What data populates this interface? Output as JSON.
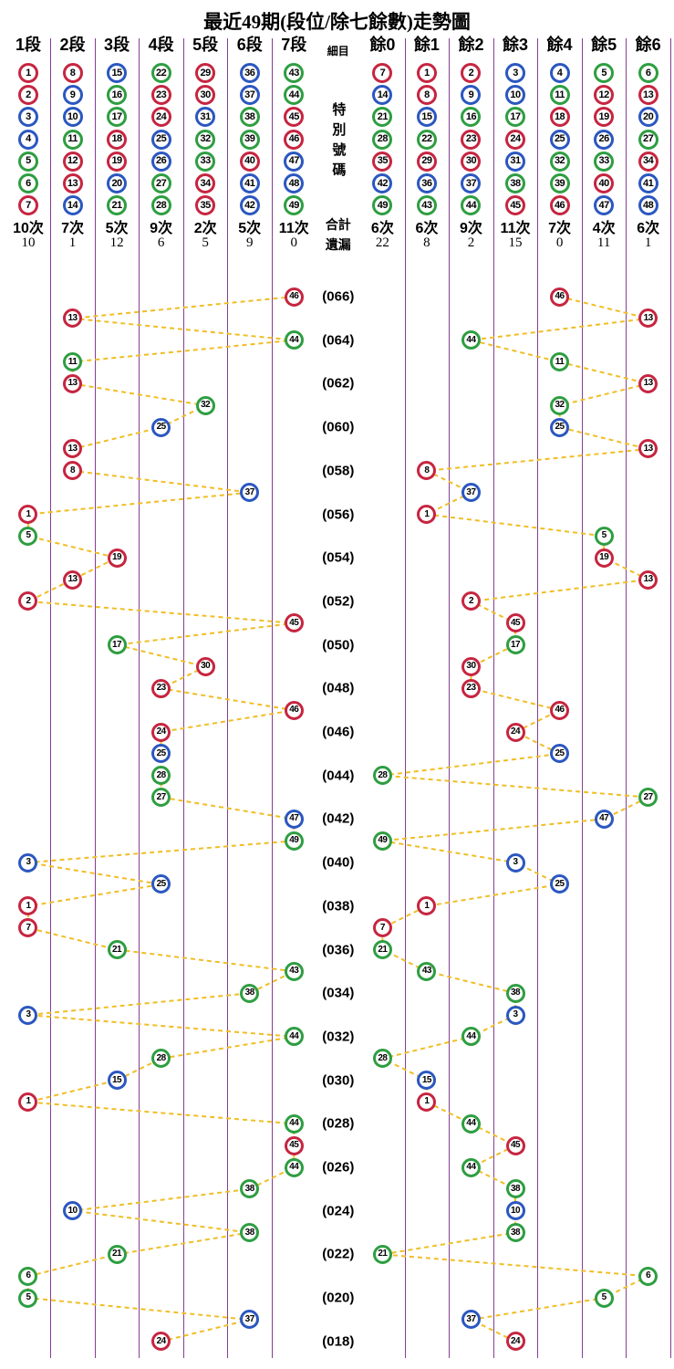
{
  "title": "最近49期(段位/除七餘數)走勢圖",
  "columns": [
    {
      "label": "1段",
      "type": "section",
      "balls": [
        1,
        2,
        3,
        4,
        5,
        6,
        7
      ],
      "count": "10次",
      "miss": "10"
    },
    {
      "label": "2段",
      "type": "section",
      "balls": [
        8,
        9,
        10,
        11,
        12,
        13,
        14
      ],
      "count": "7次",
      "miss": "1"
    },
    {
      "label": "3段",
      "type": "section",
      "balls": [
        15,
        16,
        17,
        18,
        19,
        20,
        21
      ],
      "count": "5次",
      "miss": "12"
    },
    {
      "label": "4段",
      "type": "section",
      "balls": [
        22,
        23,
        24,
        25,
        26,
        27,
        28
      ],
      "count": "9次",
      "miss": "6"
    },
    {
      "label": "5段",
      "type": "section",
      "balls": [
        29,
        30,
        31,
        32,
        33,
        34,
        35
      ],
      "count": "2次",
      "miss": "5"
    },
    {
      "label": "6段",
      "type": "section",
      "balls": [
        36,
        37,
        38,
        39,
        40,
        41,
        42
      ],
      "count": "5次",
      "miss": "9"
    },
    {
      "label": "7段",
      "type": "section",
      "balls": [
        43,
        44,
        45,
        46,
        47,
        48,
        49
      ],
      "count": "11次",
      "miss": "0"
    },
    {
      "label": "細目",
      "type": "detail",
      "special_text": "特別號碼",
      "count_label": "合計",
      "miss_label": "遺漏"
    },
    {
      "label": "餘0",
      "type": "remainder",
      "balls": [
        7,
        14,
        21,
        28,
        35,
        42,
        49
      ],
      "count": "6次",
      "miss": "22"
    },
    {
      "label": "餘1",
      "type": "remainder",
      "balls": [
        1,
        8,
        15,
        22,
        29,
        36,
        43
      ],
      "count": "6次",
      "miss": "8"
    },
    {
      "label": "餘2",
      "type": "remainder",
      "balls": [
        2,
        9,
        16,
        23,
        30,
        37,
        44
      ],
      "count": "9次",
      "miss": "2"
    },
    {
      "label": "餘3",
      "type": "remainder",
      "balls": [
        3,
        10,
        17,
        24,
        31,
        38,
        45
      ],
      "count": "11次",
      "miss": "15"
    },
    {
      "label": "餘4",
      "type": "remainder",
      "balls": [
        4,
        11,
        18,
        25,
        32,
        39,
        46
      ],
      "count": "7次",
      "miss": "0"
    },
    {
      "label": "餘5",
      "type": "remainder",
      "balls": [
        5,
        12,
        19,
        26,
        33,
        40,
        47
      ],
      "count": "4次",
      "miss": "11"
    },
    {
      "label": "餘6",
      "type": "remainder",
      "balls": [
        6,
        13,
        20,
        27,
        34,
        41,
        48
      ],
      "count": "6次",
      "miss": "1"
    }
  ],
  "chart_data": {
    "type": "scatter",
    "title": "最近49期(段位/除七餘數)走勢圖",
    "column_axis": [
      "1段",
      "2段",
      "3段",
      "4段",
      "5段",
      "6段",
      "7段",
      "細目",
      "餘0",
      "餘1",
      "餘2",
      "餘3",
      "餘4",
      "餘5",
      "餘6"
    ],
    "rows": [
      {
        "num": 46,
        "period": "(066)"
      },
      {
        "num": 13,
        "period": ""
      },
      {
        "num": 44,
        "period": "(064)"
      },
      {
        "num": 11,
        "period": ""
      },
      {
        "num": 13,
        "period": "(062)"
      },
      {
        "num": 32,
        "period": ""
      },
      {
        "num": 25,
        "period": "(060)"
      },
      {
        "num": 13,
        "period": ""
      },
      {
        "num": 8,
        "period": "(058)"
      },
      {
        "num": 37,
        "period": ""
      },
      {
        "num": 1,
        "period": "(056)"
      },
      {
        "num": 5,
        "period": ""
      },
      {
        "num": 19,
        "period": "(054)"
      },
      {
        "num": 13,
        "period": ""
      },
      {
        "num": 2,
        "period": "(052)"
      },
      {
        "num": 45,
        "period": ""
      },
      {
        "num": 17,
        "period": "(050)"
      },
      {
        "num": 30,
        "period": ""
      },
      {
        "num": 23,
        "period": "(048)"
      },
      {
        "num": 46,
        "period": ""
      },
      {
        "num": 24,
        "period": "(046)"
      },
      {
        "num": 25,
        "period": ""
      },
      {
        "num": 28,
        "period": "(044)"
      },
      {
        "num": 27,
        "period": ""
      },
      {
        "num": 47,
        "period": "(042)"
      },
      {
        "num": 49,
        "period": ""
      },
      {
        "num": 3,
        "period": "(040)"
      },
      {
        "num": 25,
        "period": ""
      },
      {
        "num": 1,
        "period": "(038)"
      },
      {
        "num": 7,
        "period": ""
      },
      {
        "num": 21,
        "period": "(036)"
      },
      {
        "num": 43,
        "period": ""
      },
      {
        "num": 38,
        "period": "(034)"
      },
      {
        "num": 3,
        "period": ""
      },
      {
        "num": 44,
        "period": "(032)"
      },
      {
        "num": 28,
        "period": ""
      },
      {
        "num": 15,
        "period": "(030)"
      },
      {
        "num": 1,
        "period": ""
      },
      {
        "num": 44,
        "period": "(028)"
      },
      {
        "num": 45,
        "period": ""
      },
      {
        "num": 44,
        "period": "(026)"
      },
      {
        "num": 38,
        "period": ""
      },
      {
        "num": 10,
        "period": "(024)"
      },
      {
        "num": 38,
        "period": ""
      },
      {
        "num": 21,
        "period": "(022)"
      },
      {
        "num": 6,
        "period": ""
      },
      {
        "num": 5,
        "period": "(020)"
      },
      {
        "num": 37,
        "period": ""
      },
      {
        "num": 24,
        "period": "(018)"
      }
    ]
  },
  "colors": {
    "red": "#C62540",
    "blue": "#2B57C0",
    "green": "#2E9E41",
    "trend_line": "#F0BE25",
    "separator": "#853E94",
    "red_numbers": [
      1,
      2,
      7,
      8,
      12,
      13,
      18,
      19,
      23,
      24,
      29,
      30,
      34,
      35,
      40,
      45,
      46
    ],
    "blue_numbers": [
      3,
      4,
      9,
      10,
      14,
      15,
      20,
      25,
      26,
      31,
      36,
      37,
      41,
      42,
      47,
      48
    ],
    "green_numbers": [
      5,
      6,
      11,
      16,
      17,
      21,
      22,
      27,
      28,
      32,
      33,
      38,
      39,
      43,
      44,
      49
    ]
  }
}
